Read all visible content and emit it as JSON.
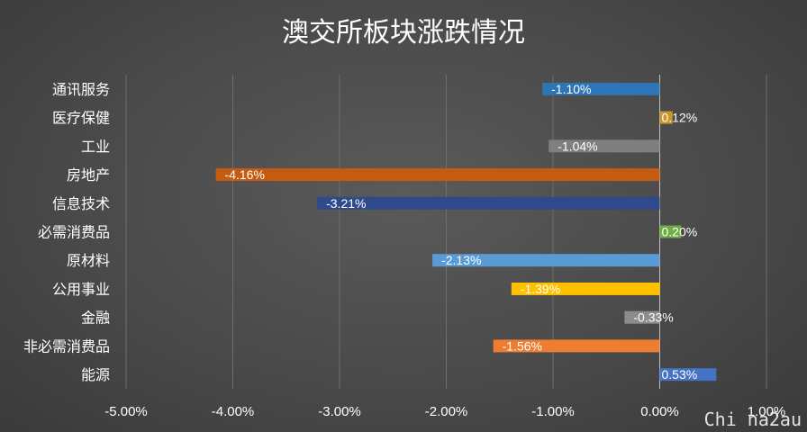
{
  "chart_data": {
    "type": "bar",
    "orientation": "horizontal",
    "title": "澳交所板块涨跌情况",
    "categories": [
      "通讯服务",
      "医疗保健",
      "工业",
      "房地产",
      "信息技术",
      "必需消费品",
      "原材料",
      "公用事业",
      "金融",
      "非必需消费品",
      "能源"
    ],
    "values": [
      -1.1,
      0.12,
      -1.04,
      -4.16,
      -3.21,
      0.2,
      -2.13,
      -1.39,
      -0.33,
      -1.56,
      0.53
    ],
    "labels": [
      "-1.10%",
      "0.12%",
      "-1.04%",
      "-4.16%",
      "-3.21%",
      "0.20%",
      "-2.13%",
      "-1.39%",
      "-0.33%",
      "-1.56%",
      "0.53%"
    ],
    "colors": [
      "#2e75b6",
      "#c9962b",
      "#7f7f7f",
      "#c55a11",
      "#2f4a8a",
      "#70ad47",
      "#5b9bd5",
      "#ffc000",
      "#8c8c8c",
      "#ed7d31",
      "#4472c4"
    ],
    "xlim": [
      -5,
      1
    ],
    "xticks": [
      "-5.00%",
      "-4.00%",
      "-3.00%",
      "-2.00%",
      "-1.00%",
      "0.00%",
      "1.00%"
    ],
    "grid": true,
    "legend": "none"
  },
  "watermark": "Chi na2au"
}
